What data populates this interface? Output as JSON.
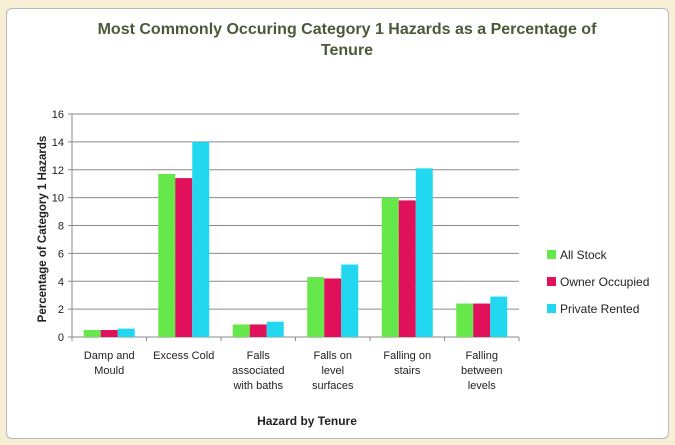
{
  "chart_data": {
    "type": "bar",
    "title": "Most Commonly Occuring Category 1 Hazards as a Percentage of Tenure",
    "xlabel": "Hazard by Tenure",
    "ylabel": "Percentage of Category 1 Hazards",
    "ylim": [
      0,
      16
    ],
    "yticks": [
      0,
      2,
      4,
      6,
      8,
      10,
      12,
      14,
      16
    ],
    "grid": true,
    "legend_position": "right",
    "categories": [
      "Damp and Mould",
      "Excess Cold",
      "Falls associated with baths",
      "Falls on level surfaces",
      "Falling on stairs",
      "Falling between levels"
    ],
    "series": [
      {
        "name": "All Stock",
        "color": "#66e84a",
        "values": [
          0.5,
          11.7,
          0.9,
          4.3,
          10.0,
          2.4
        ]
      },
      {
        "name": "Owner Occupied",
        "color": "#e0105a",
        "values": [
          0.5,
          11.4,
          0.9,
          4.2,
          9.8,
          2.4
        ]
      },
      {
        "name": "Private Rented",
        "color": "#22d8f0",
        "values": [
          0.6,
          14.0,
          1.1,
          5.2,
          12.1,
          2.9
        ]
      }
    ]
  }
}
